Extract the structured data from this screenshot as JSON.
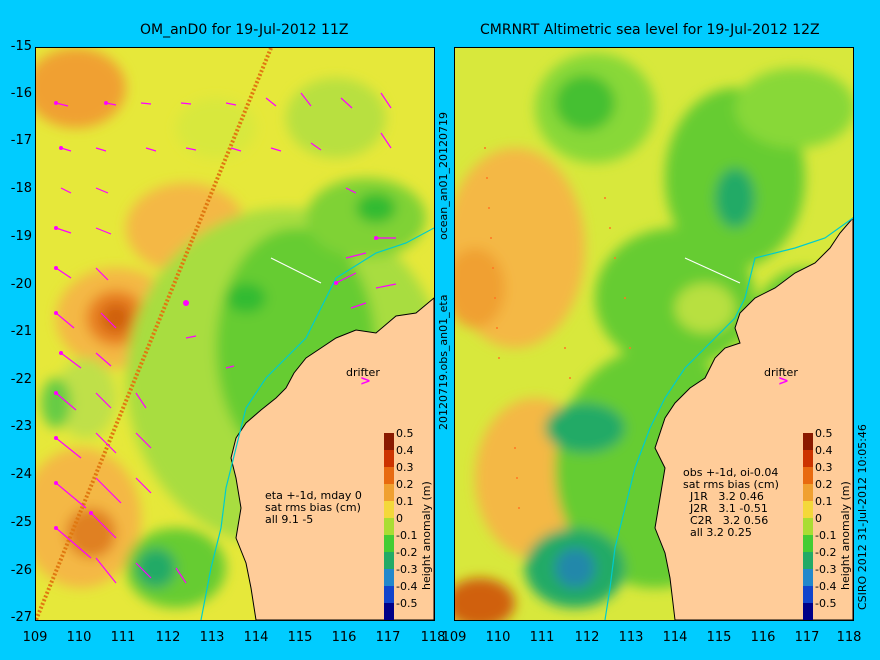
{
  "titles": {
    "left": "OM_anD0 for 19-Jul-2012 11Z",
    "right": "CMRNRT Altimetric sea level  for 19-Jul-2012 12Z"
  },
  "y_ticks": [
    "-15",
    "-16",
    "-17",
    "-18",
    "-19",
    "-20",
    "-21",
    "-22",
    "-23",
    "-24",
    "-25",
    "-26",
    "-27"
  ],
  "x_ticks_left": [
    "109",
    "110",
    "111",
    "112",
    "113",
    "114",
    "115",
    "116",
    "117",
    "118"
  ],
  "x_ticks_right": [
    "109",
    "110",
    "111",
    "112",
    "113",
    "114",
    "115",
    "116",
    "117",
    "118"
  ],
  "side_text": {
    "middle": "20120719.obs_an01_eta",
    "middle_top": "ocean_an01_20120719",
    "right": "CSIRO 2012   31-Jul-2012 10:05:46"
  },
  "notes": {
    "left": "eta +-1d, mday 0\nsat rms bias (cm)\nall 9.1 -5",
    "right": "obs +-1d, oi-0.04\nsat rms bias (cm)\n  J1R   3.2 0.46\n  J2R   3.1 -0.51\n  C2R   3.2 0.56\n  all 3.2 0.25"
  },
  "colorbar": {
    "label": "height anomaly (m)",
    "ticks": [
      "0.5",
      "0.4",
      "0.3",
      "0.2",
      "0.1",
      "0",
      "-0.1",
      "-0.2",
      "-0.3",
      "-0.4",
      "-0.5"
    ]
  },
  "drifter_label": "drifter",
  "colors": {
    "background": "#00ccff",
    "land": "#ffcc99",
    "vectors": "#ff00ff",
    "current_line": "#00cccc"
  }
}
